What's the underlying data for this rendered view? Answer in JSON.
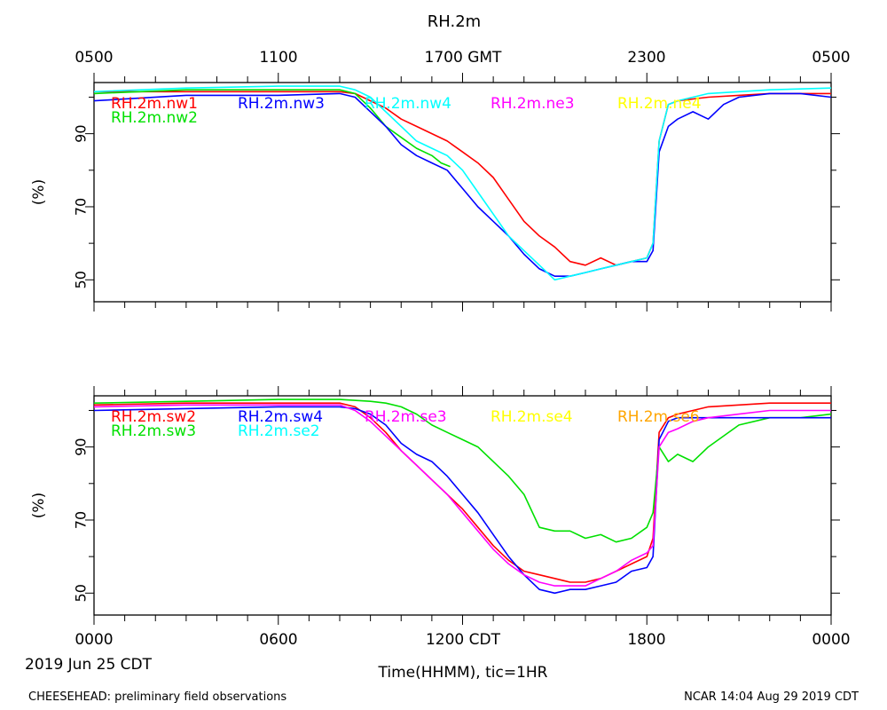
{
  "title": "RH.2m",
  "top_axis_ticks": [
    "0500",
    "1100",
    "1700 GMT",
    "2300",
    "0500"
  ],
  "bottom_axis_ticks": [
    "0000",
    "0600",
    "1200 CDT",
    "1800",
    "0000"
  ],
  "date_label": "2019 Jun 25 CDT",
  "xlabel": "Time(HHMM), tic=1HR",
  "footer_left": "CHEESEHEAD: preliminary field observations",
  "footer_right": "NCAR 14:04 Aug 29 2019 CDT",
  "chart_data": [
    {
      "type": "line",
      "ylabel": "(%)",
      "ylim": [
        44,
        104
      ],
      "yticks": [
        50,
        70,
        90
      ],
      "xlim": [
        0,
        24
      ],
      "series": [
        {
          "name": "RH.2m.nw1",
          "color": "#ff0000",
          "points": [
            [
              0,
              101.5
            ],
            [
              3,
              101.5
            ],
            [
              6,
              101.5
            ],
            [
              8,
              101.5
            ],
            [
              8.5,
              101
            ],
            [
              9,
              99
            ],
            [
              9.5,
              97
            ],
            [
              10,
              94
            ],
            [
              10.5,
              92
            ],
            [
              11,
              90
            ],
            [
              11.5,
              88
            ],
            [
              12,
              85
            ],
            [
              12.5,
              82
            ],
            [
              13,
              78
            ],
            [
              13.5,
              72
            ],
            [
              14,
              66
            ],
            [
              14.5,
              62
            ],
            [
              15,
              59
            ],
            [
              15.5,
              55
            ],
            [
              16,
              54
            ],
            [
              16.5,
              56
            ],
            [
              17,
              54
            ],
            [
              17.5,
              55
            ],
            [
              18,
              56
            ],
            [
              18.2,
              60
            ],
            [
              18.4,
              88
            ],
            [
              18.7,
              98
            ],
            [
              19,
              99
            ],
            [
              20,
              100
            ],
            [
              21,
              100.5
            ],
            [
              22,
              101
            ],
            [
              24,
              101
            ]
          ]
        },
        {
          "name": "RH.2m.nw2",
          "color": "#00e000",
          "points": [
            [
              0,
              101
            ],
            [
              3,
              102
            ],
            [
              6,
              102
            ],
            [
              8,
              102
            ],
            [
              8.5,
              101
            ],
            [
              9,
              97
            ],
            [
              9.5,
              92
            ],
            [
              10,
              89
            ],
            [
              10.5,
              86
            ],
            [
              11,
              84
            ],
            [
              11.3,
              82
            ],
            [
              11.6,
              81
            ]
          ]
        },
        {
          "name": "RH.2m.nw3",
          "color": "#0000ff",
          "points": [
            [
              0,
              99
            ],
            [
              3,
              100.5
            ],
            [
              6,
              100.5
            ],
            [
              8,
              101
            ],
            [
              8.5,
              100
            ],
            [
              9,
              96
            ],
            [
              9.5,
              92
            ],
            [
              10,
              87
            ],
            [
              10.5,
              84
            ],
            [
              11,
              82
            ],
            [
              11.5,
              80
            ],
            [
              12,
              75
            ],
            [
              12.5,
              70
            ],
            [
              13,
              66
            ],
            [
              13.5,
              62
            ],
            [
              14,
              57
            ],
            [
              14.5,
              53
            ],
            [
              15,
              51
            ],
            [
              15.5,
              51
            ],
            [
              16,
              52
            ],
            [
              16.5,
              53
            ],
            [
              17,
              54
            ],
            [
              17.5,
              55
            ],
            [
              18,
              55
            ],
            [
              18.2,
              58
            ],
            [
              18.4,
              85
            ],
            [
              18.7,
              92
            ],
            [
              19,
              94
            ],
            [
              19.5,
              96
            ],
            [
              20,
              94
            ],
            [
              20.5,
              98
            ],
            [
              21,
              100
            ],
            [
              22,
              101
            ],
            [
              23,
              101
            ],
            [
              24,
              100
            ]
          ]
        },
        {
          "name": "RH.2m.nw4",
          "color": "#00ffff",
          "points": [
            [
              0,
              101.5
            ],
            [
              3,
              102.5
            ],
            [
              6,
              103
            ],
            [
              8,
              103
            ],
            [
              8.5,
              102
            ],
            [
              9,
              100
            ],
            [
              9.5,
              96
            ],
            [
              10,
              92
            ],
            [
              10.5,
              88
            ],
            [
              11,
              86
            ],
            [
              11.5,
              84
            ],
            [
              12,
              80
            ],
            [
              12.5,
              74
            ],
            [
              13,
              68
            ],
            [
              13.5,
              62
            ],
            [
              14,
              58
            ],
            [
              14.5,
              54
            ],
            [
              15,
              50
            ],
            [
              15.5,
              51
            ],
            [
              16,
              52
            ],
            [
              16.5,
              53
            ],
            [
              17,
              54
            ],
            [
              17.5,
              55
            ],
            [
              18,
              56
            ],
            [
              18.2,
              60
            ],
            [
              18.4,
              88
            ],
            [
              18.7,
              98
            ],
            [
              19,
              99
            ],
            [
              20,
              101
            ],
            [
              21,
              101.5
            ],
            [
              22,
              102
            ],
            [
              24,
              102.5
            ]
          ]
        },
        {
          "name": "RH.2m.ne3",
          "color": "#ff00ff",
          "points": []
        },
        {
          "name": "RH.2m.ne4",
          "color": "#ffff00",
          "points": []
        }
      ]
    },
    {
      "type": "line",
      "ylabel": "(%)",
      "ylim": [
        44,
        104
      ],
      "yticks": [
        50,
        70,
        90
      ],
      "xlim": [
        0,
        24
      ],
      "series": [
        {
          "name": "RH.2m.sw2",
          "color": "#ff0000",
          "points": [
            [
              0,
              101.5
            ],
            [
              3,
              102
            ],
            [
              6,
              102
            ],
            [
              8,
              102
            ],
            [
              8.5,
              101
            ],
            [
              9,
              98
            ],
            [
              9.5,
              94
            ],
            [
              10,
              89
            ],
            [
              10.5,
              85
            ],
            [
              11,
              81
            ],
            [
              11.5,
              77
            ],
            [
              12,
              73
            ],
            [
              12.5,
              68
            ],
            [
              13,
              63
            ],
            [
              13.5,
              59
            ],
            [
              14,
              56
            ],
            [
              14.5,
              55
            ],
            [
              15,
              54
            ],
            [
              15.5,
              53
            ],
            [
              16,
              53
            ],
            [
              16.5,
              54
            ],
            [
              17,
              56
            ],
            [
              17.5,
              58
            ],
            [
              18,
              60
            ],
            [
              18.2,
              65
            ],
            [
              18.4,
              94
            ],
            [
              18.7,
              98
            ],
            [
              19,
              99
            ],
            [
              20,
              101
            ],
            [
              21,
              101.5
            ],
            [
              22,
              102
            ],
            [
              24,
              102
            ]
          ]
        },
        {
          "name": "RH.2m.sw3",
          "color": "#00e000",
          "points": [
            [
              0,
              102
            ],
            [
              3,
              102.5
            ],
            [
              6,
              103
            ],
            [
              8,
              103
            ],
            [
              9,
              102.5
            ],
            [
              9.5,
              102
            ],
            [
              10,
              101
            ],
            [
              10.5,
              99
            ],
            [
              11,
              96
            ],
            [
              11.5,
              94
            ],
            [
              12,
              92
            ],
            [
              12.5,
              90
            ],
            [
              13,
              86
            ],
            [
              13.5,
              82
            ],
            [
              14,
              77
            ],
            [
              14.5,
              68
            ],
            [
              15,
              67
            ],
            [
              15.5,
              67
            ],
            [
              16,
              65
            ],
            [
              16.5,
              66
            ],
            [
              17,
              64
            ],
            [
              17.5,
              65
            ],
            [
              18,
              68
            ],
            [
              18.2,
              72
            ],
            [
              18.4,
              90
            ],
            [
              18.7,
              86
            ],
            [
              19,
              88
            ],
            [
              19.5,
              86
            ],
            [
              20,
              90
            ],
            [
              21,
              96
            ],
            [
              22,
              98
            ],
            [
              23,
              98
            ],
            [
              24,
              99
            ]
          ]
        },
        {
          "name": "RH.2m.sw4",
          "color": "#0000ff",
          "points": [
            [
              0,
              100
            ],
            [
              3,
              100.5
            ],
            [
              6,
              101
            ],
            [
              8,
              101
            ],
            [
              8.5,
              100.5
            ],
            [
              9,
              99
            ],
            [
              9.5,
              96
            ],
            [
              10,
              91
            ],
            [
              10.5,
              88
            ],
            [
              11,
              86
            ],
            [
              11.5,
              82
            ],
            [
              12,
              77
            ],
            [
              12.5,
              72
            ],
            [
              13,
              66
            ],
            [
              13.5,
              60
            ],
            [
              14,
              55
            ],
            [
              14.5,
              51
            ],
            [
              15,
              50
            ],
            [
              15.5,
              51
            ],
            [
              16,
              51
            ],
            [
              16.5,
              52
            ],
            [
              17,
              53
            ],
            [
              17.5,
              56
            ],
            [
              18,
              57
            ],
            [
              18.2,
              60
            ],
            [
              18.4,
              92
            ],
            [
              18.7,
              97
            ],
            [
              19,
              98
            ],
            [
              20,
              98
            ],
            [
              21,
              98
            ],
            [
              22,
              98
            ],
            [
              24,
              98
            ]
          ]
        },
        {
          "name": "RH.2m.se2",
          "color": "#00ffff",
          "points": []
        },
        {
          "name": "RH.2m.se3",
          "color": "#ff00ff",
          "points": [
            [
              0,
              101
            ],
            [
              3,
              101.5
            ],
            [
              6,
              101.5
            ],
            [
              8,
              101.5
            ],
            [
              8.5,
              100
            ],
            [
              9,
              97
            ],
            [
              9.5,
              93
            ],
            [
              10,
              89
            ],
            [
              10.5,
              85
            ],
            [
              11,
              81
            ],
            [
              11.5,
              77
            ],
            [
              12,
              72
            ],
            [
              12.5,
              67
            ],
            [
              13,
              62
            ],
            [
              13.5,
              58
            ],
            [
              14,
              55
            ],
            [
              14.5,
              53
            ],
            [
              15,
              52
            ],
            [
              15.5,
              52
            ],
            [
              16,
              52
            ],
            [
              16.5,
              54
            ],
            [
              17,
              56
            ],
            [
              17.5,
              59
            ],
            [
              18,
              61
            ],
            [
              18.2,
              63
            ],
            [
              18.4,
              90
            ],
            [
              18.7,
              94
            ],
            [
              19,
              95
            ],
            [
              19.5,
              97
            ],
            [
              20,
              98
            ],
            [
              21,
              99
            ],
            [
              22,
              100
            ],
            [
              24,
              100
            ]
          ]
        },
        {
          "name": "RH.2m.se4",
          "color": "#ffff00",
          "points": []
        },
        {
          "name": "RH.2m.se6",
          "color": "#ffa500",
          "points": []
        }
      ]
    }
  ]
}
